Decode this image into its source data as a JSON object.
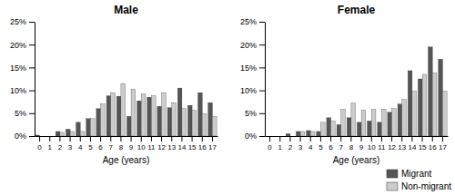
{
  "chart_data": [
    {
      "type": "bar",
      "title": "Male",
      "xlabel": "Age (years)",
      "categories": [
        0,
        1,
        2,
        3,
        4,
        5,
        6,
        7,
        8,
        9,
        10,
        11,
        12,
        13,
        14,
        15,
        16,
        17
      ],
      "series": [
        {
          "name": "Migrant",
          "color": "#555555",
          "values": [
            0.2,
            0.0,
            1.0,
            1.5,
            3.0,
            3.8,
            6.0,
            8.8,
            8.7,
            4.3,
            7.7,
            8.5,
            6.5,
            6.2,
            10.5,
            6.7,
            9.5,
            7.3
          ]
        },
        {
          "name": "Non-migrant",
          "color": "#cccccc",
          "values": [
            0.0,
            0.0,
            0.8,
            1.0,
            1.0,
            3.8,
            7.0,
            9.5,
            11.5,
            10.2,
            9.2,
            8.8,
            9.5,
            7.3,
            6.0,
            5.6,
            4.8,
            4.3
          ]
        }
      ],
      "ylim": [
        0,
        25
      ],
      "yticks": [
        {
          "value": 0,
          "label": "0%"
        },
        {
          "value": 5,
          "label": "5%"
        },
        {
          "value": 10,
          "label": "10%"
        },
        {
          "value": 15,
          "label": "15%"
        },
        {
          "value": 20,
          "label": "20%"
        },
        {
          "value": 25,
          "label": "25%"
        }
      ]
    },
    {
      "type": "bar",
      "title": "Female",
      "xlabel": "Age (years)",
      "categories": [
        0,
        1,
        2,
        3,
        4,
        5,
        6,
        7,
        8,
        9,
        10,
        11,
        12,
        13,
        14,
        15,
        16,
        17
      ],
      "series": [
        {
          "name": "Migrant",
          "color": "#555555",
          "values": [
            0.0,
            0.0,
            0.5,
            1.0,
            1.2,
            1.0,
            4.0,
            2.5,
            4.0,
            3.0,
            3.3,
            3.0,
            5.2,
            7.0,
            14.3,
            12.5,
            19.5,
            16.8
          ]
        },
        {
          "name": "Non-migrant",
          "color": "#cccccc",
          "values": [
            0.0,
            0.0,
            0.0,
            1.0,
            1.0,
            3.0,
            3.3,
            5.8,
            7.2,
            5.7,
            5.8,
            5.9,
            6.0,
            8.0,
            9.8,
            13.5,
            13.8,
            9.8
          ]
        }
      ],
      "ylim": [
        0,
        25
      ],
      "yticks": [
        {
          "value": 0,
          "label": "0%"
        },
        {
          "value": 5,
          "label": "5%"
        },
        {
          "value": 10,
          "label": "10%"
        },
        {
          "value": 15,
          "label": "15%"
        },
        {
          "value": 20,
          "label": "20%"
        },
        {
          "value": 25,
          "label": "25%"
        }
      ],
      "legend": "lower right"
    }
  ]
}
